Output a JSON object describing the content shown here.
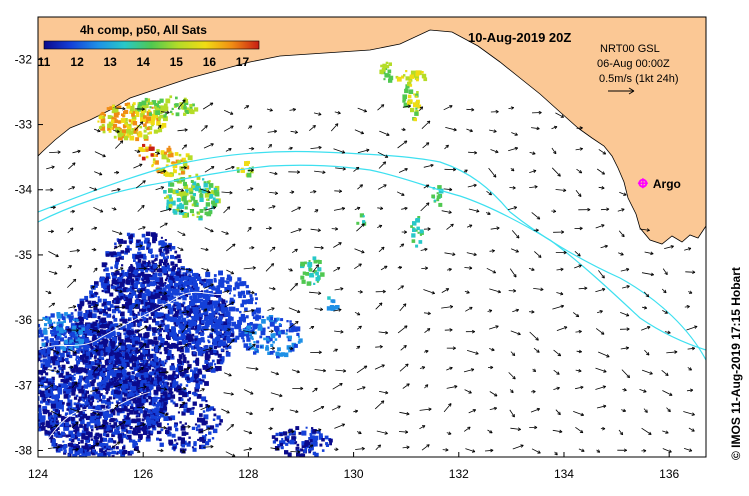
{
  "title": "10-Aug-2019 20Z",
  "colorbar": {
    "title": "4h comp, p50, All Sats",
    "ticks": [
      "11",
      "12",
      "13",
      "14",
      "15",
      "16",
      "17"
    ],
    "range": [
      11,
      17.5
    ],
    "colors": [
      "#0a0a8c",
      "#1440d8",
      "#1e90e6",
      "#28c8c8",
      "#50c850",
      "#b4dc28",
      "#f0dc14",
      "#f08c14",
      "#c81e14"
    ]
  },
  "velocity_legend": {
    "line1": "NRT00 GSL",
    "line2": "06-Aug 00:00Z",
    "line3": "0.5m/s (1kt 24h)"
  },
  "marker": {
    "label": "Argo",
    "lon": 135.5,
    "lat": -33.9,
    "color": "#ff00ff"
  },
  "axes": {
    "x_ticks": [
      "124",
      "126",
      "128",
      "130",
      "132",
      "134",
      "136"
    ],
    "y_ticks": [
      "-32",
      "-33",
      "-34",
      "-35",
      "-36",
      "-37",
      "-38"
    ],
    "lon_range": [
      124,
      136.7
    ],
    "lat_range": [
      -38.1,
      -31.35
    ]
  },
  "credit": "© IMOS 11-Aug-2019 17:15 Hobart",
  "colors": {
    "land": "#fbc895",
    "shelf_contour": "#3ee0f0",
    "arrows": "#000000"
  }
}
